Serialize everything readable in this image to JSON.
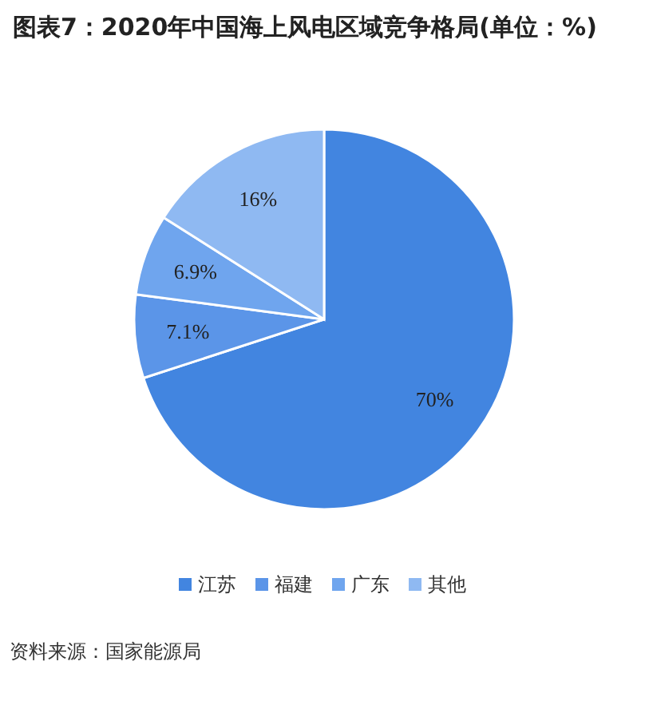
{
  "chart_data": {
    "type": "pie",
    "title": "图表7：2020年中国海上风电区域竞争格局(单位：%)",
    "categories": [
      "江苏",
      "福建",
      "广东",
      "其他"
    ],
    "values": [
      70,
      7.1,
      6.9,
      16
    ],
    "value_labels": [
      "70%",
      "7.1%",
      "6.9%",
      "16%"
    ],
    "colors": [
      "#4285e0",
      "#5b95e8",
      "#6fa5ee",
      "#8fb9f2"
    ],
    "legend": "bottom",
    "annotations": [
      "资料来源：国家能源局"
    ]
  }
}
